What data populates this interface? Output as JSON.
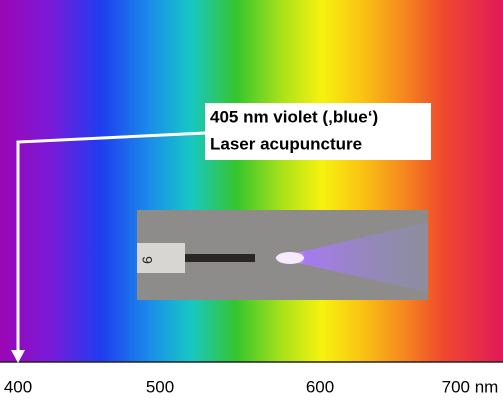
{
  "callout": {
    "lines": [
      "405 nm violet (‚blue‘)",
      "Laser acupuncture"
    ]
  },
  "axis": {
    "ticks": [
      "400",
      "500",
      "600",
      "700 nm"
    ]
  }
}
